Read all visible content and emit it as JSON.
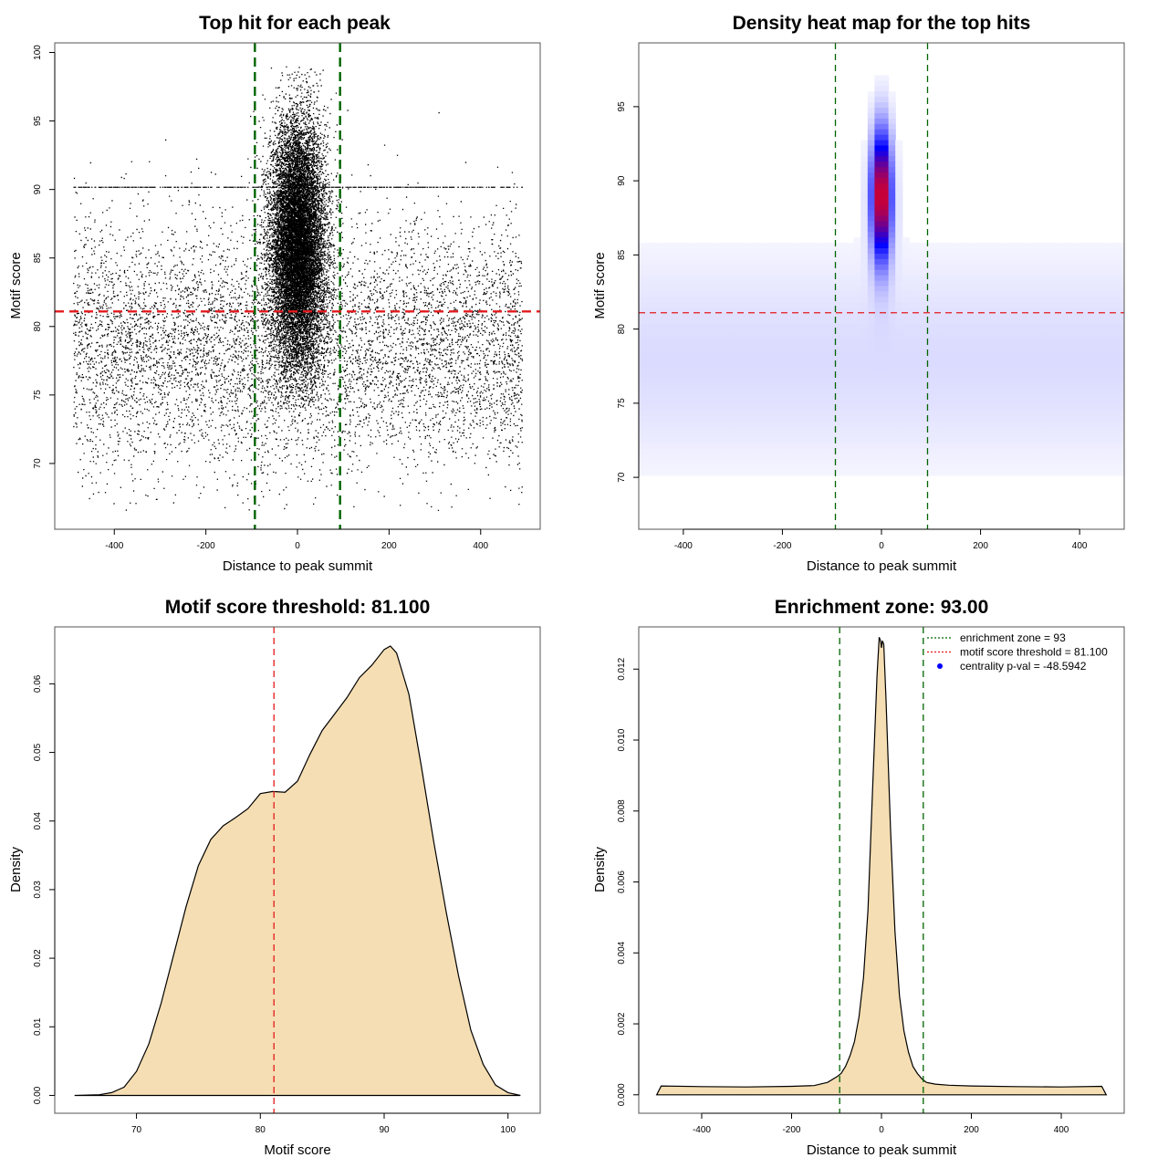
{
  "chart_data": [
    {
      "type": "scatter",
      "title": "Top hit for each peak",
      "xlabel": "Distance to peak summit",
      "ylabel": "Motif score",
      "xlim": [
        -530,
        530
      ],
      "ylim": [
        65.2,
        100.7
      ],
      "xticks": [
        -400,
        -200,
        0,
        200,
        400
      ],
      "yticks": [
        70,
        75,
        80,
        85,
        90,
        95,
        100
      ],
      "point_color": "#000000",
      "central_cloud": {
        "x_center": 0,
        "x_sd": 30,
        "y_center": 86,
        "y_sd": 4.5,
        "y_range": [
          74,
          99
        ]
      },
      "background_cloud": {
        "x_range": [
          -490,
          490
        ],
        "y_center": 78.5,
        "y_sd": 4.5,
        "y_range": [
          66.5,
          97.5
        ]
      },
      "reference_lines": [
        {
          "orientation": "v",
          "value": -93,
          "color": "#006400",
          "style": "dashed"
        },
        {
          "orientation": "v",
          "value": 93,
          "color": "#006400",
          "style": "dashed"
        },
        {
          "orientation": "h",
          "value": 81.1,
          "color": "#e31a1c",
          "style": "dashed"
        }
      ]
    },
    {
      "type": "heatmap",
      "title": "Density heat map for the top hits",
      "xlabel": "Distance to peak summit",
      "ylabel": "Motif score",
      "xlim": [
        -490,
        490
      ],
      "ylim": [
        66.5,
        99.3
      ],
      "xticks": [
        -400,
        -200,
        0,
        200,
        400
      ],
      "yticks": [
        70,
        75,
        80,
        85,
        90,
        95
      ],
      "colors": [
        "#ffffff",
        "#0000ff",
        "#ff0000"
      ],
      "hotspot": {
        "x": 0,
        "y": 89,
        "x_sd": 14,
        "y_sd": 3
      },
      "reference_lines": [
        {
          "orientation": "v",
          "value": -93,
          "color": "#006400",
          "style": "dashed"
        },
        {
          "orientation": "v",
          "value": 93,
          "color": "#006400",
          "style": "dashed"
        },
        {
          "orientation": "h",
          "value": 81.1,
          "color": "#e31a1c",
          "style": "dashed"
        }
      ]
    },
    {
      "type": "area",
      "title": "Motif score threshold: 81.100",
      "xlabel": "Motif score",
      "ylabel": "Density",
      "xlim": [
        63.4,
        102.6
      ],
      "ylim": [
        -0.0026,
        0.0683
      ],
      "xticks": [
        70,
        80,
        90,
        100
      ],
      "yticks": [
        0.0,
        0.01,
        0.02,
        0.03,
        0.04,
        0.05,
        0.06
      ],
      "ytick_labels": [
        "0.00",
        "0.01",
        "0.02",
        "0.03",
        "0.04",
        "0.05",
        "0.06"
      ],
      "fill": "#f5deb3",
      "x": [
        65,
        67,
        68,
        69,
        70,
        71,
        72,
        73,
        74,
        75,
        76,
        77,
        78,
        79,
        80,
        81,
        82,
        83,
        84,
        85,
        86,
        87,
        88,
        89,
        90,
        90.5,
        91,
        92,
        93,
        94,
        95,
        96,
        97,
        98,
        99,
        100,
        101
      ],
      "y": [
        0.0,
        0.0001,
        0.0004,
        0.0012,
        0.0035,
        0.0075,
        0.0135,
        0.0205,
        0.0275,
        0.0335,
        0.0373,
        0.0393,
        0.0405,
        0.0418,
        0.044,
        0.0443,
        0.0442,
        0.0458,
        0.0497,
        0.0532,
        0.0556,
        0.058,
        0.0609,
        0.0627,
        0.065,
        0.0655,
        0.0645,
        0.0585,
        0.048,
        0.037,
        0.0268,
        0.0175,
        0.0095,
        0.0045,
        0.0015,
        0.0004,
        0.0
      ],
      "reference_lines": [
        {
          "orientation": "v",
          "value": 81.1,
          "color": "#e31a1c",
          "style": "dashed"
        }
      ]
    },
    {
      "type": "area",
      "title": "Enrichment zone: 93.00",
      "xlabel": "Distance to peak summit",
      "ylabel": "Density",
      "xlim": [
        -540,
        540
      ],
      "ylim": [
        -0.00052,
        0.01319
      ],
      "xticks": [
        -400,
        -200,
        0,
        200,
        400
      ],
      "yticks": [
        0.0,
        0.002,
        0.004,
        0.006,
        0.008,
        0.01,
        0.012
      ],
      "ytick_labels": [
        "0.000",
        "0.002",
        "0.004",
        "0.006",
        "0.008",
        "0.010",
        "0.012"
      ],
      "fill": "#f5deb3",
      "x": [
        -500,
        -490,
        -400,
        -300,
        -200,
        -150,
        -120,
        -100,
        -90,
        -80,
        -70,
        -60,
        -50,
        -40,
        -30,
        -20,
        -10,
        -5,
        -2,
        0,
        2,
        5,
        10,
        20,
        30,
        40,
        50,
        60,
        70,
        80,
        90,
        100,
        120,
        150,
        200,
        300,
        400,
        490,
        500
      ],
      "y": [
        0.0,
        0.00025,
        0.00023,
        0.00022,
        0.00024,
        0.00026,
        0.00035,
        0.0005,
        0.0006,
        0.0008,
        0.0011,
        0.0015,
        0.0022,
        0.0033,
        0.0052,
        0.0085,
        0.0118,
        0.0129,
        0.0128,
        0.0126,
        0.0128,
        0.0127,
        0.0112,
        0.0075,
        0.0046,
        0.0028,
        0.0018,
        0.0012,
        0.0008,
        0.0006,
        0.00045,
        0.00035,
        0.0003,
        0.00027,
        0.00025,
        0.00023,
        0.00022,
        0.00024,
        0.0
      ],
      "reference_lines": [
        {
          "orientation": "v",
          "value": -93,
          "color": "#006400",
          "style": "dashed"
        },
        {
          "orientation": "v",
          "value": 93,
          "color": "#006400",
          "style": "dashed"
        }
      ],
      "legend": {
        "position": "top-right",
        "entries": [
          {
            "label": "enrichment zone = 93",
            "symbol": "dotted-line",
            "color": "#006400"
          },
          {
            "label": "motif score threshold = 81.100",
            "symbol": "dotted-line",
            "color": "#e31a1c"
          },
          {
            "label": "centrality p-val = -48.5942",
            "symbol": "dot",
            "color": "#0000ff"
          }
        ]
      }
    }
  ]
}
